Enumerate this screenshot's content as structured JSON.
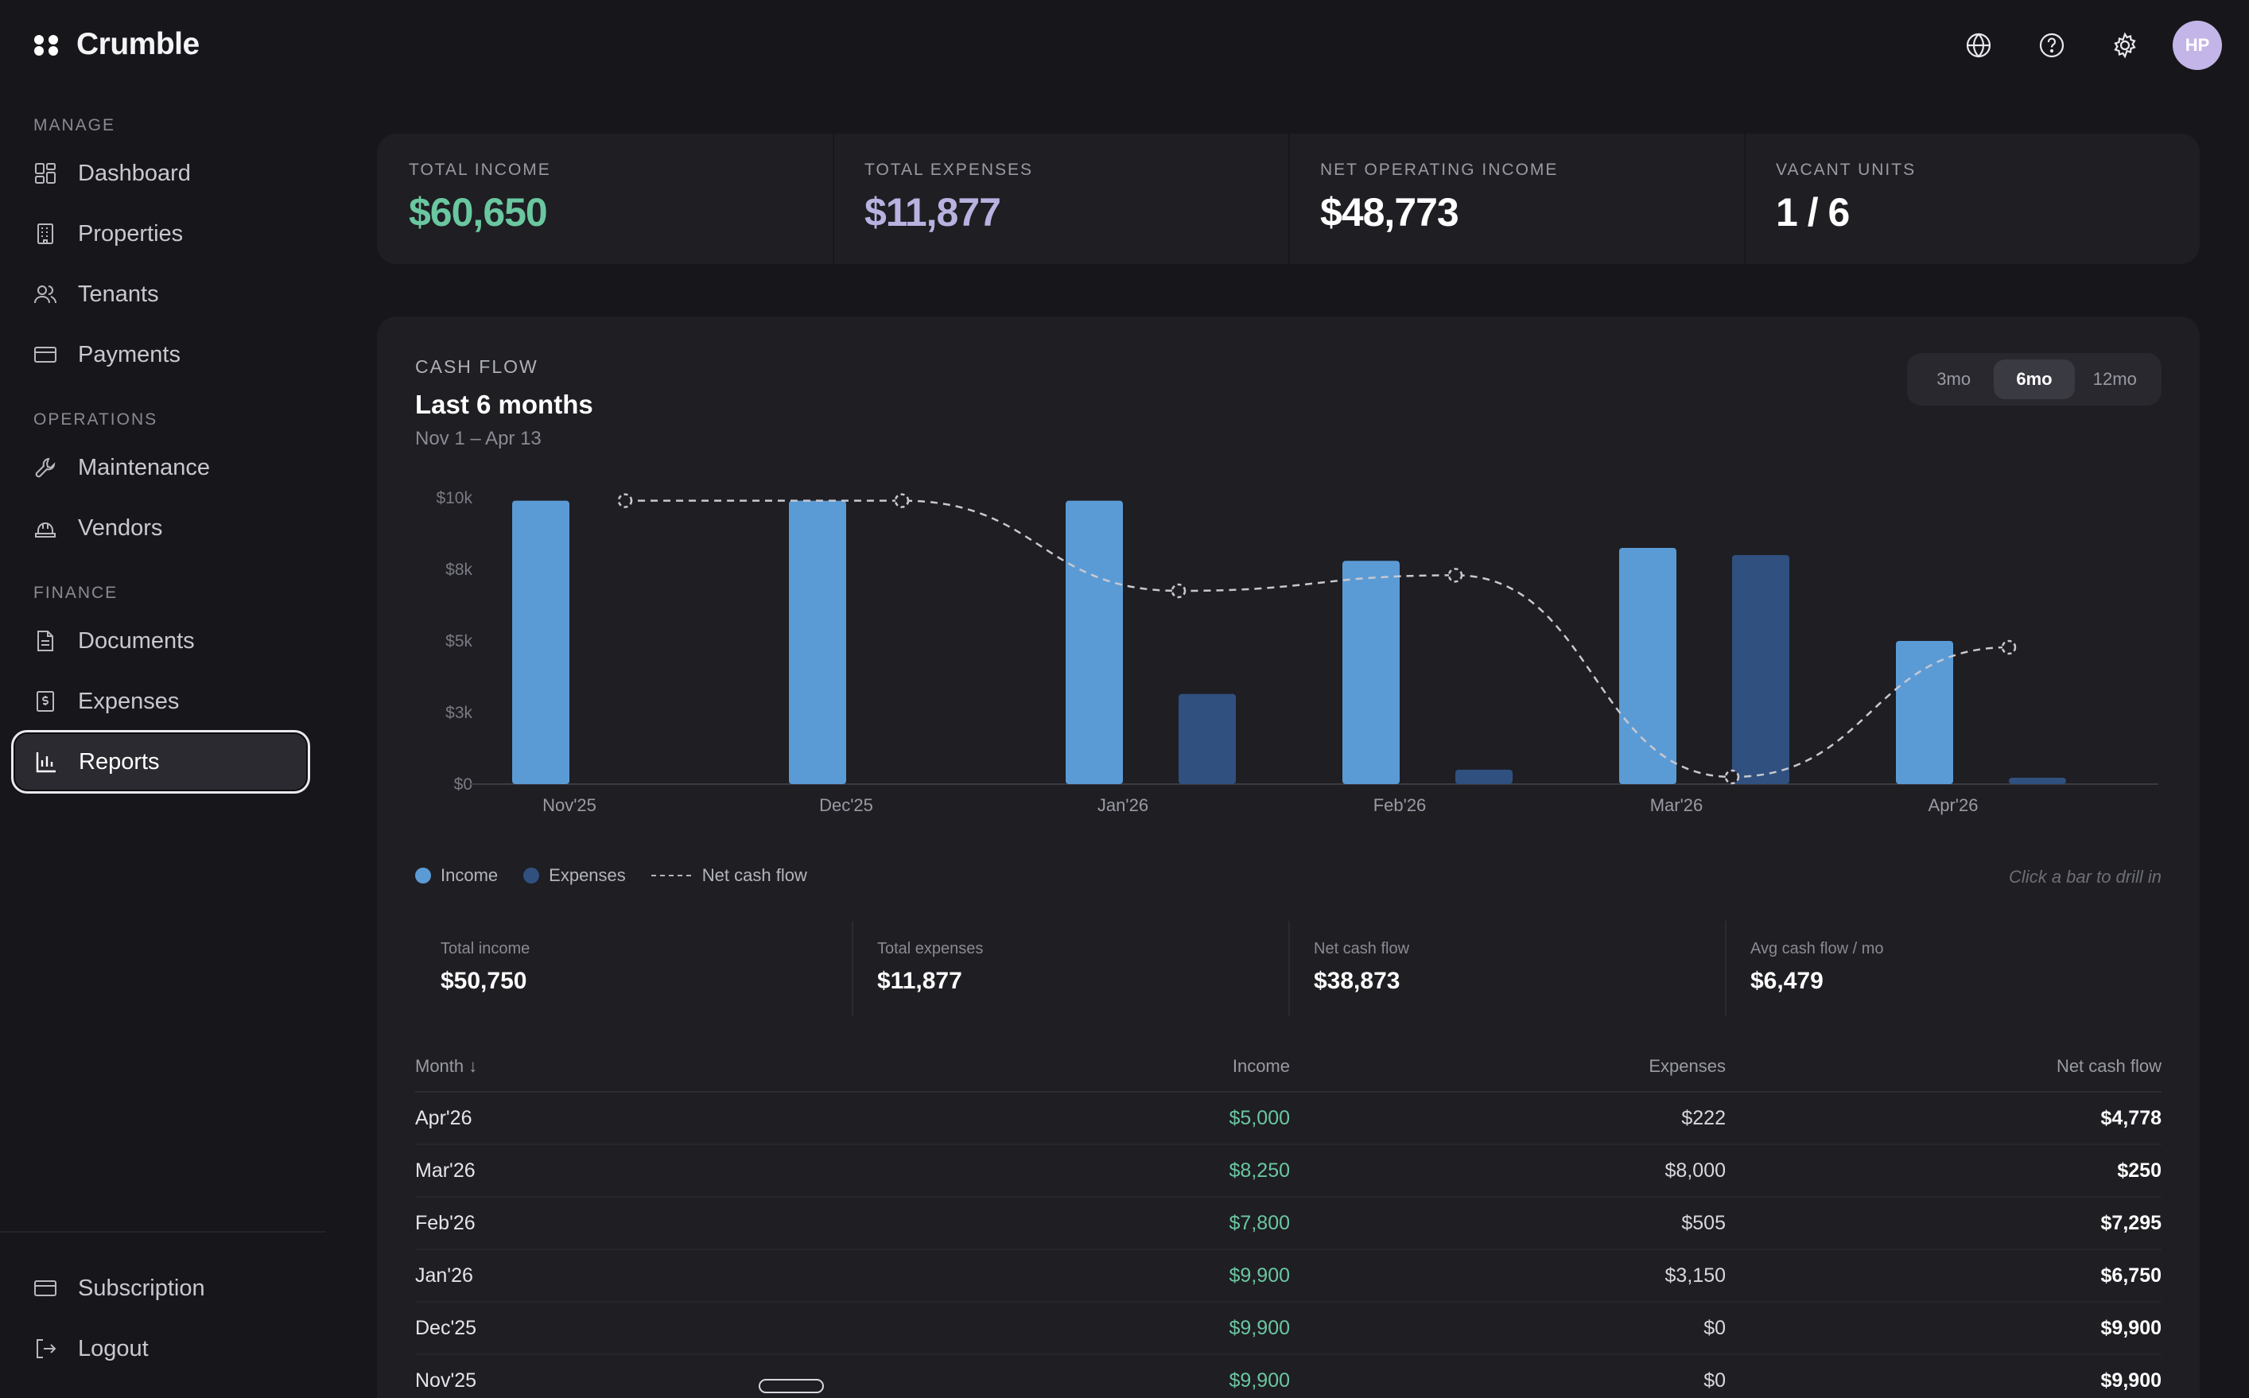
{
  "brand": {
    "name": "Crumble"
  },
  "sidebar": {
    "sections": [
      {
        "label": "Manage"
      },
      {
        "label": "Operations"
      },
      {
        "label": "Finance"
      }
    ],
    "items": [
      {
        "label": "Dashboard",
        "icon": "dashboard-icon"
      },
      {
        "label": "Properties",
        "icon": "building-icon"
      },
      {
        "label": "Tenants",
        "icon": "users-icon"
      },
      {
        "label": "Payments",
        "icon": "credit-card-icon"
      },
      {
        "label": "Maintenance",
        "icon": "wrench-icon"
      },
      {
        "label": "Vendors",
        "icon": "hardhat-icon"
      },
      {
        "label": "Documents",
        "icon": "document-icon"
      },
      {
        "label": "Expenses",
        "icon": "receipt-icon"
      },
      {
        "label": "Reports",
        "icon": "bar-chart-icon",
        "active": true
      }
    ],
    "footer": [
      {
        "label": "Subscription",
        "icon": "credit-card-icon"
      },
      {
        "label": "Logout",
        "icon": "logout-icon"
      }
    ]
  },
  "topbar": {
    "avatar_initials": "HP"
  },
  "stats": [
    {
      "label": "Total income",
      "value": "$60,650",
      "color": "#6ac7a0"
    },
    {
      "label": "Total expenses",
      "value": "$11,877",
      "color": "#b8b2e0"
    },
    {
      "label": "Net operating income",
      "value": "$48,773",
      "color": "#ffffff"
    },
    {
      "label": "Vacant units",
      "value": "1 / 6",
      "color": "#ffffff"
    }
  ],
  "cashflow": {
    "eyebrow": "Cash flow",
    "title": "Last 6 months",
    "subtitle": "Nov 1 – Apr 13",
    "ranges": [
      {
        "label": "3mo",
        "active": false
      },
      {
        "label": "6mo",
        "active": true
      },
      {
        "label": "12mo",
        "active": false
      }
    ],
    "legend": {
      "income": "Income",
      "expenses": "Expenses",
      "net": "Net cash flow"
    },
    "hint": "Click a bar to drill in",
    "summary": [
      {
        "label": "Total income",
        "value": "$50,750"
      },
      {
        "label": "Total expenses",
        "value": "$11,877"
      },
      {
        "label": "Net cash flow",
        "value": "$38,873"
      },
      {
        "label": "Avg cash flow / mo",
        "value": "$6,479"
      }
    ],
    "table": {
      "headers": {
        "month": "Month ↓",
        "income": "Income",
        "expenses": "Expenses",
        "net": "Net cash flow"
      },
      "rows": [
        {
          "month": "Apr'26",
          "income": "$5,000",
          "expenses": "$222",
          "net": "$4,778"
        },
        {
          "month": "Mar'26",
          "income": "$8,250",
          "expenses": "$8,000",
          "net": "$250"
        },
        {
          "month": "Feb'26",
          "income": "$7,800",
          "expenses": "$505",
          "net": "$7,295"
        },
        {
          "month": "Jan'26",
          "income": "$9,900",
          "expenses": "$3,150",
          "net": "$6,750"
        },
        {
          "month": "Dec'25",
          "income": "$9,900",
          "expenses": "$0",
          "net": "$9,900"
        },
        {
          "month": "Nov'25",
          "income": "$9,900",
          "expenses": "$0",
          "net": "$9,900"
        }
      ]
    }
  },
  "chart_data": {
    "type": "bar",
    "categories": [
      "Nov'25",
      "Dec'25",
      "Jan'26",
      "Feb'26",
      "Mar'26",
      "Apr'26"
    ],
    "series": [
      {
        "name": "Income",
        "values": [
          9900,
          9900,
          9900,
          7800,
          8250,
          5000
        ],
        "color": "#5b9bd5"
      },
      {
        "name": "Expenses",
        "values": [
          0,
          0,
          3150,
          505,
          8000,
          222
        ],
        "color": "#30507f"
      },
      {
        "name": "Net cash flow",
        "type": "line",
        "values": [
          9900,
          9900,
          6750,
          7295,
          250,
          4778
        ],
        "color": "#c8c8d0"
      }
    ],
    "yticks": [
      "$0",
      "$3k",
      "$5k",
      "$8k",
      "$10k"
    ],
    "ylim": [
      0,
      10000
    ],
    "grid": false,
    "legend": "bottom-left"
  }
}
